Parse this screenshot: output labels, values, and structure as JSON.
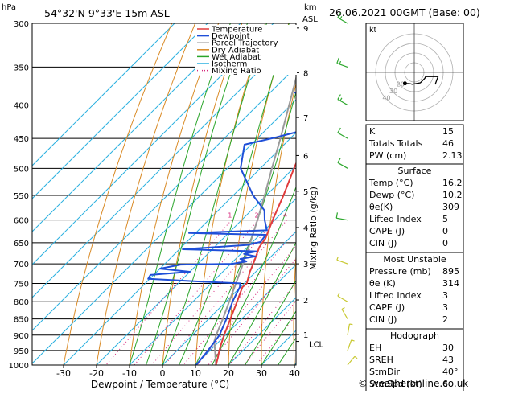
{
  "header": {
    "location": "54°32'N  9°33'E  15m  ASL",
    "datetime": "26.06.2021  00GMT  (Base: 00)",
    "hpa_label": "hPa",
    "km_label": "km",
    "asl_label": "ASL",
    "mixing_ratio_axis_label": "Mixing Ratio (g/kg)",
    "lcl_label": "LCL",
    "credit": "© weatheronline.co.uk"
  },
  "chart_data": {
    "type": "skew-t",
    "title": "54°32'N  9°33'E  15m  ASL",
    "xlabel": "Dewpoint / Temperature (°C)",
    "x_ticks": [
      -30,
      -20,
      -10,
      0,
      10,
      20,
      30,
      40
    ],
    "x_range": [
      -35,
      40
    ],
    "p_range": [
      300,
      1000
    ],
    "pressure_levels": [
      300,
      350,
      400,
      450,
      500,
      550,
      600,
      650,
      700,
      750,
      800,
      850,
      900,
      950,
      1000
    ],
    "height_km": [
      {
        "km": "9",
        "p": 305
      },
      {
        "km": "8",
        "p": 357
      },
      {
        "km": "7",
        "p": 418
      },
      {
        "km": "6",
        "p": 478
      },
      {
        "km": "5",
        "p": 542
      },
      {
        "km": "4",
        "p": 616
      },
      {
        "km": "3",
        "p": 700
      },
      {
        "km": "2",
        "p": 795
      },
      {
        "km": "1",
        "p": 898
      }
    ],
    "lcl_p": 920,
    "mixing_ratio_labels": [
      "1",
      "2",
      "3",
      "4",
      "6",
      "8",
      "10",
      "15",
      "20",
      "25"
    ],
    "mixing_ratio_values": [
      1,
      2,
      3,
      4,
      6,
      8,
      10,
      15,
      20,
      25
    ],
    "dry_adiabats_theta_c": [
      -30,
      -20,
      -10,
      0,
      10,
      20,
      30,
      40,
      50,
      60,
      70,
      80,
      90,
      100,
      110,
      120
    ],
    "moist_adiabats_c": [
      -10,
      -5,
      0,
      5,
      10,
      15,
      20,
      25,
      30,
      35
    ],
    "isotherms_c": [
      -100,
      -90,
      -80,
      -70,
      -60,
      -50,
      -40,
      -30,
      -20,
      -10,
      0,
      10,
      20,
      30,
      40
    ],
    "legend": [
      {
        "name": "Temperature",
        "color": "#e03c3c",
        "style": "solid"
      },
      {
        "name": "Dewpoint",
        "color": "#1f4fd8",
        "style": "solid"
      },
      {
        "name": "Parcel Trajectory",
        "color": "#9a9a9a",
        "style": "solid"
      },
      {
        "name": "Dry Adiabat",
        "color": "#d98a25",
        "style": "solid"
      },
      {
        "name": "Wet Adiabat",
        "color": "#2aa52a",
        "style": "solid"
      },
      {
        "name": "Isotherm",
        "color": "#2bb0e0",
        "style": "solid"
      },
      {
        "name": "Mixing Ratio",
        "color": "#d6257a",
        "style": "dotted"
      }
    ],
    "series": [
      {
        "name": "Temperature",
        "points": [
          [
            1000,
            16.2
          ],
          [
            975,
            14.6
          ],
          [
            950,
            12.8
          ],
          [
            925,
            11.2
          ],
          [
            900,
            9.6
          ],
          [
            850,
            6.6
          ],
          [
            800,
            3.4
          ],
          [
            760,
            0.6
          ],
          [
            750,
            0.8
          ],
          [
            720,
            -1.8
          ],
          [
            700,
            -3.2
          ],
          [
            660,
            -6.4
          ],
          [
            640,
            -7.2
          ],
          [
            600,
            -10.6
          ],
          [
            550,
            -14.8
          ],
          [
            500,
            -19.8
          ],
          [
            450,
            -25.0
          ],
          [
            400,
            -31.2
          ],
          [
            380,
            -33.4
          ],
          [
            350,
            -38.0
          ],
          [
            300,
            -45.0
          ]
        ]
      },
      {
        "name": "Dewpoint",
        "points": [
          [
            1000,
            10.2
          ],
          [
            950,
            9.4
          ],
          [
            900,
            8.2
          ],
          [
            850,
            5.4
          ],
          [
            800,
            2.0
          ],
          [
            760,
            -0.2
          ],
          [
            750,
            -1.2
          ],
          [
            745,
            -14.0
          ],
          [
            738,
            -30.5
          ],
          [
            728,
            -31.0
          ],
          [
            720,
            -20.0
          ],
          [
            712,
            -30.0
          ],
          [
            702,
            -25.0
          ],
          [
            700,
            -9.6
          ],
          [
            694,
            -6.0
          ],
          [
            688,
            -8.6
          ],
          [
            682,
            -4.8
          ],
          [
            676,
            -9.0
          ],
          [
            670,
            -6.0
          ],
          [
            665,
            -29.0
          ],
          [
            655,
            -10.6
          ],
          [
            648,
            -7.6
          ],
          [
            632,
            -8.2
          ],
          [
            628,
            -32.0
          ],
          [
            622,
            -9.2
          ],
          [
            600,
            -13.0
          ],
          [
            580,
            -16.0
          ],
          [
            550,
            -24.0
          ],
          [
            500,
            -36.0
          ],
          [
            460,
            -42.0
          ],
          [
            448,
            -34.5
          ],
          [
            440,
            -30.0
          ],
          [
            430,
            -26.0
          ],
          [
            410,
            -22.0
          ],
          [
            400,
            -21.0
          ],
          [
            390,
            -30.0
          ],
          [
            383,
            -42.5
          ],
          [
            377,
            -38.0
          ],
          [
            360,
            -39.0
          ],
          [
            350,
            -40.0
          ],
          [
            320,
            -47.0
          ],
          [
            300,
            -51.0
          ]
        ]
      },
      {
        "name": "Parcel Trajectory",
        "points": [
          [
            1000,
            16.2
          ],
          [
            950,
            11.5
          ],
          [
            920,
            8.5
          ],
          [
            900,
            7.2
          ],
          [
            850,
            4.3
          ],
          [
            800,
            1.0
          ],
          [
            750,
            -2.5
          ],
          [
            700,
            -6.3
          ],
          [
            650,
            -10.5
          ],
          [
            600,
            -15.2
          ],
          [
            550,
            -20.5
          ],
          [
            500,
            -26.5
          ],
          [
            450,
            -33.0
          ],
          [
            400,
            -40.5
          ],
          [
            350,
            -49.0
          ],
          [
            300,
            -58.0
          ]
        ]
      }
    ],
    "winds": [
      {
        "p": 1000,
        "dir": 40,
        "spd": 6
      },
      {
        "p": 950,
        "dir": 20,
        "spd": 5
      },
      {
        "p": 900,
        "dir": 10,
        "spd": 5
      },
      {
        "p": 850,
        "dir": 330,
        "spd": 5
      },
      {
        "p": 800,
        "dir": 300,
        "spd": 5
      },
      {
        "p": 700,
        "dir": 290,
        "spd": 5
      },
      {
        "p": 600,
        "dir": 280,
        "spd": 10
      },
      {
        "p": 500,
        "dir": 300,
        "spd": 10
      },
      {
        "p": 450,
        "dir": 300,
        "spd": 10
      },
      {
        "p": 400,
        "dir": 300,
        "spd": 15
      },
      {
        "p": 350,
        "dir": 290,
        "spd": 15
      },
      {
        "p": 300,
        "dir": 300,
        "spd": 15
      }
    ],
    "hodograph": {
      "label": "kt",
      "ring_labels": [
        "40",
        "30",
        "20"
      ],
      "storm_motion": {
        "dir": 40,
        "spd": 6
      },
      "trace": [
        [
          40,
          6
        ],
        [
          20,
          5
        ],
        [
          10,
          5
        ],
        [
          330,
          5
        ],
        [
          300,
          5
        ],
        [
          290,
          5
        ],
        [
          280,
          10
        ],
        [
          300,
          10
        ]
      ]
    }
  },
  "indices": {
    "basic": [
      {
        "label": "K",
        "value": "15"
      },
      {
        "label": "Totals Totals",
        "value": "46"
      },
      {
        "label": "PW (cm)",
        "value": "2.13"
      }
    ],
    "surface_title": "Surface",
    "surface": [
      {
        "label": "Temp (°C)",
        "value": "16.2"
      },
      {
        "label": "Dewp (°C)",
        "value": "10.2"
      },
      {
        "label": "θe(K)",
        "value": "309"
      },
      {
        "label": "Lifted Index",
        "value": "5"
      },
      {
        "label": "CAPE (J)",
        "value": "0"
      },
      {
        "label": "CIN (J)",
        "value": "0"
      }
    ],
    "unstable_title": "Most Unstable",
    "unstable": [
      {
        "label": "Pressure (mb)",
        "value": "895"
      },
      {
        "label": "θe (K)",
        "value": "314"
      },
      {
        "label": "Lifted Index",
        "value": "3"
      },
      {
        "label": "CAPE (J)",
        "value": "3"
      },
      {
        "label": "CIN (J)",
        "value": "2"
      }
    ],
    "hodograph_title": "Hodograph",
    "hodograph": [
      {
        "label": "EH",
        "value": "30"
      },
      {
        "label": "SREH",
        "value": "43"
      },
      {
        "label": "StmDir",
        "value": "40°"
      },
      {
        "label": "StmSpd (kt)",
        "value": "6"
      }
    ]
  }
}
